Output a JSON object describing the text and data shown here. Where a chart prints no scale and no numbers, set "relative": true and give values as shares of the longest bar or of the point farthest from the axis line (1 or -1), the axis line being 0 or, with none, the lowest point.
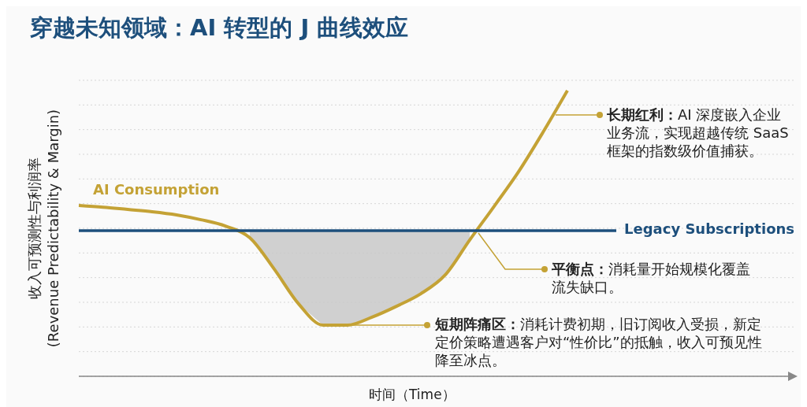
{
  "chart_data": {
    "type": "line",
    "title": "穿越未知领域：AI 转型的 J 曲线效应",
    "xlabel": "时间（Time）",
    "ylabel": "收入可预测性与利润率\n(Revenue Predictability & Margin)",
    "categories": [
      null,
      null,
      null,
      null,
      null,
      null,
      null,
      null,
      null,
      null,
      null,
      null,
      null,
      null,
      null,
      null,
      null,
      null,
      null,
      null,
      null,
      null,
      null
    ],
    "relative": true,
    "grid": "y",
    "line_style": "solid",
    "series": [
      {
        "name": "AI Consumption",
        "color": "#c4a235",
        "values": [
          0.598,
          0.592,
          0.584,
          0.576,
          0.565,
          0.548,
          0.526,
          0.485,
          0.375,
          0.253,
          0.179,
          0.179,
          0.207,
          0.245,
          0.289,
          0.355,
          0.477,
          0.595,
          0.716,
          0.854,
          1.0,
          null,
          null
        ]
      },
      {
        "name": "Legacy Subscriptions",
        "color": "#1d4f7c",
        "values": [
          0.51,
          0.51,
          0.51,
          0.51,
          0.51,
          0.51,
          0.51,
          0.51,
          0.51,
          0.51,
          0.51,
          0.51,
          0.51,
          0.51,
          0.51,
          0.51,
          0.51,
          0.51,
          0.51,
          0.51,
          0.51,
          0.51,
          0.51
        ],
        "lower": [
          null,
          null,
          null,
          null,
          null,
          null,
          null,
          0.485,
          0.375,
          0.253,
          0.179,
          0.179,
          0.207,
          0.245,
          0.289,
          0.355,
          0.477,
          null,
          null,
          null,
          null,
          null,
          null
        ],
        "upper": [
          null,
          null,
          null,
          null,
          null,
          null,
          null,
          0.51,
          0.51,
          0.51,
          0.51,
          0.51,
          0.51,
          0.51,
          0.51,
          0.51,
          0.51,
          null,
          null,
          null,
          null,
          null,
          null
        ]
      }
    ],
    "annotations": [
      "长期红利：AI 深度嵌入企业业务流，实现超越传统 SaaS 框架的指数级价值捕获。",
      "平衡点：消耗量开始规模化覆盖流失缺口。",
      "短期阵痛区：消耗计费初期，旧订阅收入受损，新定定价策略遭遇客户对“性价比”的抵触，收入可预见性降至冰点。"
    ]
  }
}
